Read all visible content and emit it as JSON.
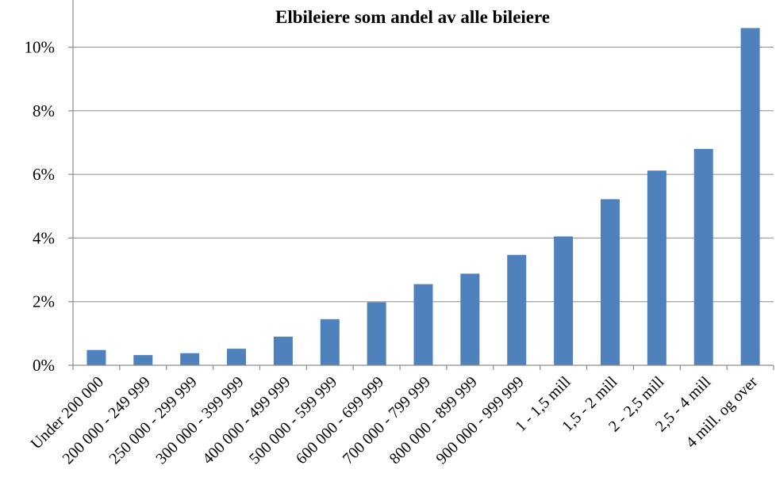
{
  "chart_data": {
    "type": "bar",
    "title": "Elbileiere  som andel av alle bileiere",
    "xlabel": "",
    "ylabel": "",
    "categories": [
      "Under 200 000",
      "200 000 - 249 999",
      "250 000 - 299 999",
      "300 000 - 399 999",
      "400 000 - 499 999",
      "500 000 - 599 999",
      "600 000 - 699 999",
      "700 000 - 799 999",
      "800 000 - 899 999",
      "900 000 - 999 999",
      "1 - 1,5 mill",
      "1,5 - 2 mill",
      "2 - 2,5 mill",
      "2,5 - 4 mill",
      "4 mill. og over"
    ],
    "values": [
      0.48,
      0.32,
      0.38,
      0.52,
      0.9,
      1.45,
      1.98,
      2.55,
      2.88,
      3.47,
      4.05,
      5.22,
      6.12,
      6.8,
      10.6
    ],
    "ylim": [
      0,
      11
    ],
    "yticks": [
      "0%",
      "2%",
      "4%",
      "6%",
      "8%",
      "10%"
    ],
    "ytick_values": [
      0,
      2,
      4,
      6,
      8,
      10
    ],
    "grid": true,
    "legend": "none",
    "bar_color": "#4f81bd"
  }
}
